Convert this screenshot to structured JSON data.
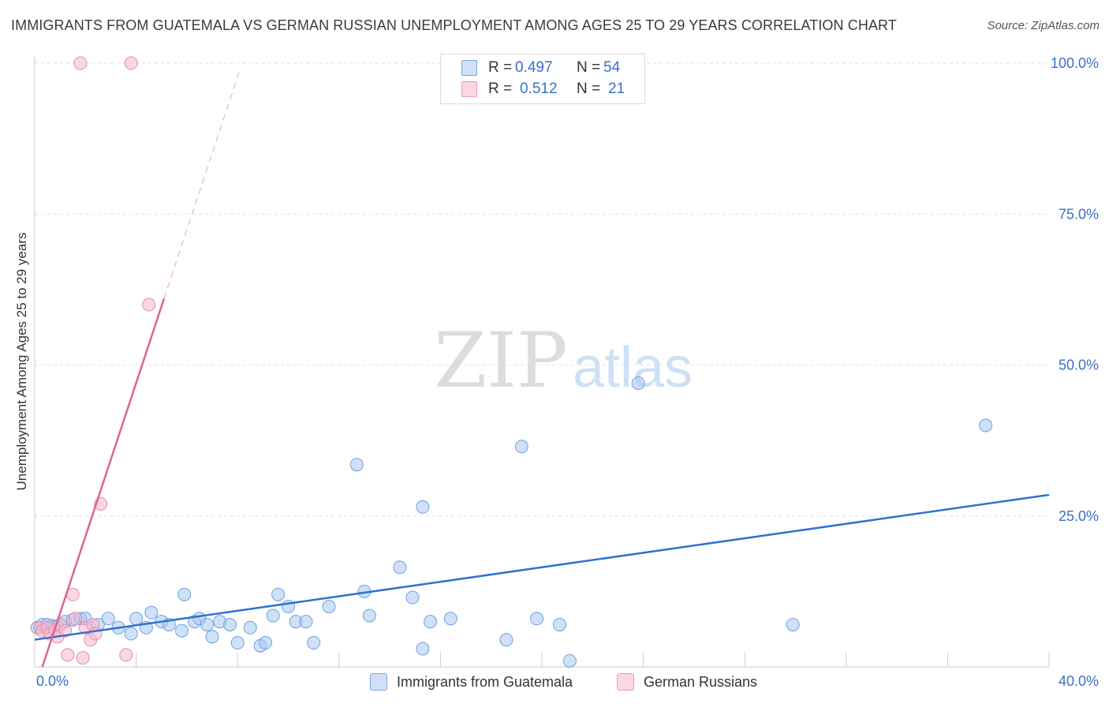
{
  "title": "IMMIGRANTS FROM GUATEMALA VS GERMAN RUSSIAN UNEMPLOYMENT AMONG AGES 25 TO 29 YEARS CORRELATION CHART",
  "source": "Source: ZipAtlas.com",
  "watermark": {
    "zip": "ZIP",
    "atlas": "atlas"
  },
  "legend": {
    "r_label": "R =",
    "n_label": "N =",
    "rows": [
      {
        "r": "0.497",
        "n": "54",
        "color": "#a8c8f0"
      },
      {
        "r": "0.512",
        "n": "21",
        "color": "#f5b8cc"
      }
    ]
  },
  "bottom_legend": [
    {
      "label": "Immigrants from Guatemala",
      "color": "#a8c8f0"
    },
    {
      "label": "German Russians",
      "color": "#f5b8cc"
    }
  ],
  "chart_data": {
    "type": "scatter",
    "title": "IMMIGRANTS FROM GUATEMALA VS GERMAN RUSSIAN UNEMPLOYMENT AMONG AGES 25 TO 29 YEARS CORRELATION CHART",
    "xlabel": "",
    "ylabel": "Unemployment Among Ages 25 to 29 years",
    "xlim": [
      0,
      40
    ],
    "ylim": [
      0,
      100
    ],
    "x_tick_labels": [
      "0.0%",
      "40.0%"
    ],
    "y_ticks": [
      25,
      50,
      75,
      100
    ],
    "y_tick_labels": [
      "25.0%",
      "50.0%",
      "75.0%",
      "100.0%"
    ],
    "grid": true,
    "legend_position": "top-center",
    "series": [
      {
        "name": "Immigrants from Guatemala",
        "color": "#6fa0e0",
        "fill": "#a8c8f0",
        "line_color": "#2f72d0",
        "R": 0.497,
        "N": 54,
        "trend": {
          "x": [
            0.0,
            40.0
          ],
          "y": [
            4.5,
            28.5
          ]
        },
        "points": [
          [
            0.1,
            6.5
          ],
          [
            0.3,
            7.0
          ],
          [
            0.5,
            7.0
          ],
          [
            0.7,
            6.8
          ],
          [
            0.9,
            6.8
          ],
          [
            1.2,
            7.5
          ],
          [
            1.5,
            7.8
          ],
          [
            1.8,
            8.0
          ],
          [
            2.0,
            8.0
          ],
          [
            2.5,
            7.0
          ],
          [
            2.9,
            8.0
          ],
          [
            3.3,
            6.5
          ],
          [
            3.8,
            5.5
          ],
          [
            4.0,
            8.0
          ],
          [
            4.4,
            6.5
          ],
          [
            4.6,
            9.0
          ],
          [
            5.0,
            7.5
          ],
          [
            5.3,
            7.0
          ],
          [
            5.8,
            6.0
          ],
          [
            5.9,
            12.0
          ],
          [
            6.3,
            7.5
          ],
          [
            6.5,
            8.0
          ],
          [
            6.8,
            7.0
          ],
          [
            7.0,
            5.0
          ],
          [
            7.3,
            7.5
          ],
          [
            7.7,
            7.0
          ],
          [
            8.0,
            4.0
          ],
          [
            8.5,
            6.5
          ],
          [
            8.9,
            3.5
          ],
          [
            9.1,
            4.0
          ],
          [
            9.4,
            8.5
          ],
          [
            9.6,
            12.0
          ],
          [
            10.0,
            10.0
          ],
          [
            10.3,
            7.5
          ],
          [
            10.7,
            7.5
          ],
          [
            11.0,
            4.0
          ],
          [
            11.6,
            10.0
          ],
          [
            12.7,
            33.5
          ],
          [
            13.0,
            12.5
          ],
          [
            13.2,
            8.5
          ],
          [
            14.4,
            16.5
          ],
          [
            14.9,
            11.5
          ],
          [
            15.3,
            26.5
          ],
          [
            15.3,
            3.0
          ],
          [
            15.6,
            7.5
          ],
          [
            16.4,
            8.0
          ],
          [
            18.6,
            4.5
          ],
          [
            19.2,
            36.5
          ],
          [
            19.8,
            8.0
          ],
          [
            20.7,
            7.0
          ],
          [
            21.1,
            1.0
          ],
          [
            23.8,
            47.0
          ],
          [
            29.9,
            7.0
          ],
          [
            37.5,
            40.0
          ]
        ]
      },
      {
        "name": "German Russians",
        "color": "#e88aa8",
        "fill": "#f5b8cc",
        "line_color": "#e0609a",
        "R": 0.512,
        "N": 21,
        "trend": {
          "x": [
            0.3,
            5.1
          ],
          "y": [
            0.0,
            61.0
          ]
        },
        "trend_dashed": {
          "x": [
            5.1,
            8.1
          ],
          "y": [
            61.0,
            99.0
          ]
        },
        "points": [
          [
            0.2,
            6.5
          ],
          [
            0.3,
            6.0
          ],
          [
            0.5,
            6.5
          ],
          [
            0.6,
            5.5
          ],
          [
            0.8,
            6.0
          ],
          [
            1.0,
            7.0
          ],
          [
            1.3,
            2.0
          ],
          [
            1.5,
            12.0
          ],
          [
            1.6,
            8.0
          ],
          [
            1.9,
            1.5
          ],
          [
            2.0,
            6.5
          ],
          [
            2.2,
            4.5
          ],
          [
            2.3,
            7.0
          ],
          [
            2.4,
            5.5
          ],
          [
            2.6,
            27.0
          ],
          [
            3.6,
            2.0
          ],
          [
            4.5,
            60.0
          ],
          [
            1.8,
            100.0
          ],
          [
            3.8,
            100.0
          ],
          [
            0.9,
            5.0
          ],
          [
            1.2,
            6.0
          ]
        ]
      }
    ]
  }
}
